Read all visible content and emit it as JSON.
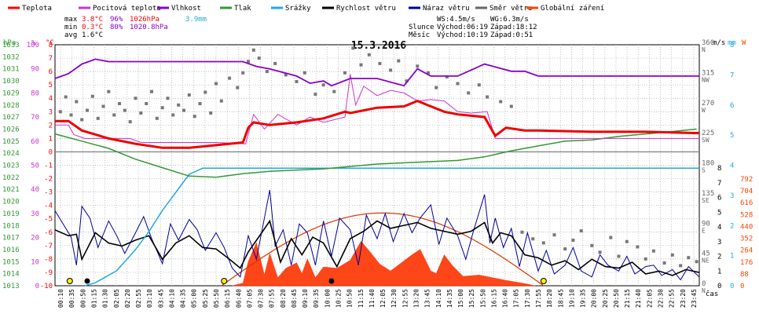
{
  "legend": [
    {
      "label": "Teplota",
      "color": "#ff0000"
    },
    {
      "label": "Pocitová teplota",
      "color": "#cc33cc"
    },
    {
      "label": "Vlhkost",
      "color": "#8800cc"
    },
    {
      "label": "Tlak",
      "color": "#339933"
    },
    {
      "label": "Srážky",
      "color": "#22aadd"
    },
    {
      "label": "Rychlost větru",
      "color": "#000000"
    },
    {
      "label": "Náraz větru",
      "color": "#000099"
    },
    {
      "label": "Směr větru",
      "color": "#666666"
    },
    {
      "label": "Globální záření",
      "color": "#ff4400"
    }
  ],
  "stats": {
    "max": {
      "label": "max",
      "temp": "3.8°C",
      "hum": "96%",
      "press": "1026hPa",
      "rain": "3.9mm"
    },
    "min": {
      "label": "min",
      "temp": "0.3°C",
      "hum": "80%",
      "press": "1020.8hPa"
    },
    "avg": {
      "label": "avg",
      "temp": "1.6°C"
    }
  },
  "info": {
    "ws": "WS:4.5m/s",
    "wg": "WG:6.3m/s",
    "sun_label": "Slunce",
    "sun_rise": "Východ:06:19",
    "sun_set": "Západ:18:12",
    "moon_label": "Měsíc",
    "moon_rise": "Východ:10:19",
    "moon_set": "Západ:0:51"
  },
  "chart_data": {
    "type": "line",
    "title": "15.3.2016",
    "xlabel": "čas",
    "axis_units": {
      "press": "hPa",
      "hum": "%",
      "temp": "°C",
      "dir": "°",
      "wind": "m/s",
      "rain": "mm",
      "rad": "W"
    },
    "x_ticks": [
      "00:10",
      "00:35",
      "00:50",
      "01:15",
      "01:30",
      "02:05",
      "02:20",
      "02:55",
      "03:10",
      "03:45",
      "04:10",
      "04:35",
      "05:00",
      "05:25",
      "05:50",
      "06:15",
      "06:40",
      "07:05",
      "07:30",
      "07:55",
      "08:20",
      "08:45",
      "09:10",
      "09:35",
      "10:00",
      "10:25",
      "10:50",
      "11:15",
      "11:40",
      "12:05",
      "12:30",
      "12:55",
      "13:20",
      "13:45",
      "14:10",
      "14:35",
      "15:00",
      "15:25",
      "15:50",
      "16:15",
      "16:40",
      "17:05",
      "17:30",
      "17:55",
      "18:20",
      "18:45",
      "19:10",
      "19:35",
      "20:00",
      "20:25",
      "20:50",
      "21:15",
      "21:40",
      "22:05",
      "22:30",
      "22:55",
      "23:20",
      "23:45"
    ],
    "pressure_axis": {
      "min": 1013,
      "max": 1033,
      "ticks": [
        "1013",
        "1014",
        "1015",
        "1016",
        "1017",
        "1018",
        "1019",
        "1020",
        "1021",
        "1022",
        "1023",
        "1024",
        "1025",
        "1026",
        "1027",
        "1028",
        "1029",
        "1030",
        "1031",
        "1032",
        "1033"
      ]
    },
    "humidity_axis": {
      "ticks": [
        "0",
        "10",
        "20",
        "30",
        "40",
        "50",
        "60",
        "70",
        "80",
        "90",
        "100"
      ]
    },
    "temp_axis": {
      "min": -10,
      "max": 8,
      "ticks": [
        "-10",
        "-9",
        "-8",
        "-7",
        "-6",
        "-5",
        "-4",
        "-3",
        "-2",
        "-1",
        "0",
        "1",
        "2",
        "3",
        "4",
        "5",
        "6",
        "7",
        "8"
      ]
    },
    "direction_axis": {
      "min": 0,
      "max": 360,
      "ticks": [
        {
          "deg": "0",
          "dir": "N"
        },
        {
          "deg": "45",
          "dir": "NE"
        },
        {
          "deg": "90",
          "dir": "E"
        },
        {
          "deg": "135",
          "dir": "SE"
        },
        {
          "deg": "180",
          "dir": "S"
        },
        {
          "deg": "225",
          "dir": "SW"
        },
        {
          "deg": "270",
          "dir": "W"
        },
        {
          "deg": "315",
          "dir": "NW"
        },
        {
          "deg": "360",
          "dir": "N"
        }
      ]
    },
    "wind_axis": {
      "min": 0,
      "max": 8,
      "ticks": [
        "0",
        "1",
        "2",
        "3",
        "4",
        "5",
        "6",
        "7",
        "8"
      ]
    },
    "rain_axis": {
      "min": 0,
      "max": 8,
      "ticks": [
        "0",
        "1",
        "2",
        "3",
        "4",
        "5",
        "6",
        "7",
        "8"
      ]
    },
    "radiation_axis": {
      "min": 0,
      "max": 792,
      "ticks": [
        "0",
        "88",
        "176",
        "264",
        "352",
        "440",
        "528",
        "616",
        "704",
        "792"
      ]
    },
    "temperature": {
      "hours": [
        0,
        0.5,
        1,
        2,
        3,
        4,
        5,
        6,
        7,
        7.2,
        7.4,
        8,
        9,
        10,
        10.8,
        11,
        11.5,
        12,
        13,
        13.5,
        14,
        14.5,
        15,
        16,
        16.4,
        16.8,
        17.5,
        18,
        20,
        22,
        24
      ],
      "values": [
        2.3,
        2.3,
        1.6,
        1.0,
        0.6,
        0.3,
        0.3,
        0.5,
        0.7,
        1.8,
        2.2,
        2.0,
        2.2,
        2.5,
        3.0,
        2.9,
        3.1,
        3.3,
        3.4,
        3.8,
        3.4,
        3.0,
        2.8,
        2.6,
        1.2,
        1.8,
        1.6,
        1.6,
        1.5,
        1.5,
        1.4
      ]
    },
    "apparent_temperature": {
      "hours": [
        0,
        0.5,
        0.7,
        1.1,
        1.5,
        2.8,
        3.2,
        6.0,
        7.1,
        7.4,
        7.8,
        8.3,
        9.0,
        9.5,
        10.0,
        10.8,
        11.0,
        11.2,
        11.5,
        12.0,
        12.5,
        13.0,
        13.5,
        14.0,
        14.5,
        15.0,
        15.5,
        16.1,
        16.4,
        16.8,
        20.0,
        22.0,
        24.0
      ],
      "values": [
        2.0,
        2.0,
        1.3,
        1.0,
        1.0,
        1.0,
        0.7,
        0.7,
        0.6,
        2.8,
        1.7,
        2.8,
        2.0,
        2.6,
        2.2,
        2.6,
        5.8,
        3.5,
        4.9,
        4.2,
        4.6,
        4.4,
        3.8,
        3.9,
        3.8,
        3.0,
        2.9,
        3.0,
        1.0,
        1.0,
        1.0,
        1.0,
        1.0
      ]
    },
    "humidity": {
      "hours": [
        0,
        0.5,
        1,
        1.5,
        2,
        3,
        4,
        5,
        6,
        7,
        7.5,
        8,
        9,
        9.5,
        10,
        10.3,
        11,
        12,
        13,
        13.5,
        14,
        15,
        16,
        17,
        17.5,
        18,
        19,
        20,
        21,
        22,
        23,
        24
      ],
      "values": [
        86,
        88,
        92,
        94,
        93,
        93,
        93,
        93,
        93,
        93,
        91,
        90,
        87,
        84,
        85,
        83,
        86,
        86,
        83,
        90,
        87,
        87,
        92,
        89,
        89,
        87,
        87,
        87,
        87,
        87,
        87,
        87
      ]
    },
    "pressure": {
      "hours": [
        0,
        1,
        2,
        3,
        4,
        5,
        6,
        7,
        8,
        9,
        10,
        11,
        12,
        13,
        14,
        15,
        16,
        17,
        18,
        19,
        20,
        21,
        22,
        23,
        23.9
      ],
      "values": [
        1025.6,
        1025.0,
        1024.4,
        1023.5,
        1022.8,
        1022.1,
        1022.0,
        1022.3,
        1022.5,
        1022.6,
        1022.7,
        1022.9,
        1023.1,
        1023.2,
        1023.3,
        1023.4,
        1023.7,
        1024.2,
        1024.6,
        1025.0,
        1025.1,
        1025.4,
        1025.6,
        1025.8,
        1026.0
      ]
    },
    "rain": {
      "hours": [
        1.1,
        1.5,
        2.3,
        3.0,
        3.5,
        4.0,
        4.5,
        5.0,
        5.5,
        6.2,
        24.0
      ],
      "values": [
        0.0,
        0.1,
        0.5,
        1.2,
        1.8,
        2.5,
        3.1,
        3.7,
        3.9,
        3.9,
        3.9
      ]
    },
    "radiation": {
      "hours": [
        6.6,
        7.0,
        7.2,
        7.5,
        7.8,
        8.0,
        8.3,
        8.6,
        9.0,
        9.2,
        9.4,
        9.7,
        10.0,
        10.5,
        11.0,
        11.4,
        11.7,
        12.1,
        12.5,
        12.9,
        13.3,
        13.6,
        14.0,
        14.2,
        14.5,
        14.8,
        15.2,
        15.8,
        16.3,
        16.8,
        17.4,
        17.9
      ],
      "values": [
        0,
        20,
        180,
        320,
        80,
        240,
        60,
        130,
        170,
        90,
        200,
        60,
        140,
        130,
        190,
        330,
        260,
        160,
        110,
        170,
        230,
        270,
        110,
        90,
        230,
        150,
        70,
        80,
        60,
        40,
        20,
        0
      ]
    },
    "wind_speed": {
      "hours": [
        0,
        0.5,
        0.8,
        1.0,
        1.5,
        2.0,
        2.5,
        3.0,
        3.5,
        4.0,
        4.5,
        5.0,
        5.5,
        6.0,
        6.5,
        6.9,
        7.2,
        7.7,
        8.0,
        8.4,
        8.8,
        9.2,
        9.6,
        10.0,
        10.5,
        11.0,
        11.5,
        12.0,
        12.5,
        13.0,
        13.5,
        14.0,
        14.5,
        15.0,
        15.5,
        16.0,
        16.3,
        16.6,
        17.0,
        17.5,
        18.0,
        18.5,
        19.0,
        19.5,
        20.0,
        20.5,
        21.0,
        21.5,
        22.0,
        22.5,
        23.0,
        23.5,
        24.0
      ],
      "values": [
        3.8,
        3.4,
        3.5,
        1.8,
        3.6,
        2.9,
        2.7,
        3.1,
        3.4,
        1.8,
        2.9,
        3.4,
        2.6,
        2.5,
        1.8,
        1.2,
        2.3,
        3.6,
        4.4,
        1.6,
        3.2,
        2.1,
        3.3,
        2.9,
        1.3,
        3.2,
        3.7,
        4.4,
        3.9,
        4.1,
        4.3,
        3.9,
        3.7,
        3.5,
        3.7,
        4.3,
        2.9,
        3.6,
        3.4,
        2.1,
        1.9,
        1.4,
        1.7,
        1.1,
        1.8,
        1.3,
        1.2,
        1.6,
        0.8,
        1.0,
        0.7,
        1.1,
        0.9
      ]
    },
    "wind_gust": {
      "hours": [
        0,
        0.3,
        0.6,
        0.8,
        1.0,
        1.3,
        1.6,
        2.0,
        2.3,
        2.6,
        3.0,
        3.3,
        3.6,
        4.0,
        4.3,
        4.6,
        5.0,
        5.3,
        5.6,
        6.0,
        6.3,
        6.6,
        6.9,
        7.2,
        7.5,
        7.8,
        8.0,
        8.2,
        8.5,
        8.8,
        9.1,
        9.4,
        9.7,
        10.0,
        10.3,
        10.6,
        11.0,
        11.3,
        11.6,
        12.0,
        12.3,
        12.6,
        13.0,
        13.3,
        13.6,
        14.0,
        14.3,
        14.6,
        15.0,
        15.3,
        15.6,
        16.0,
        16.2,
        16.4,
        16.7,
        17.0,
        17.3,
        17.6,
        18.0,
        18.3,
        18.6,
        19.0,
        19.3,
        19.6,
        20.0,
        20.3,
        20.6,
        21.0,
        21.3,
        21.6,
        22.0,
        22.3,
        22.6,
        23.0,
        23.3,
        23.6,
        24.0
      ],
      "values": [
        5.1,
        4.2,
        3.3,
        1.4,
        5.4,
        4.6,
        2.6,
        4.4,
        3.4,
        2.2,
        3.6,
        4.7,
        3.2,
        1.5,
        4.2,
        3.1,
        4.5,
        3.8,
        2.4,
        3.6,
        2.6,
        1.2,
        0.6,
        3.4,
        1.8,
        4.6,
        6.5,
        2.7,
        3.8,
        1.4,
        4.2,
        3.6,
        1.4,
        4.4,
        2.0,
        4.6,
        3.8,
        1.4,
        4.8,
        3.2,
        4.9,
        3.0,
        4.9,
        3.6,
        4.6,
        5.5,
        2.8,
        4.6,
        3.4,
        1.8,
        3.8,
        6.2,
        2.9,
        4.6,
        2.6,
        3.9,
        1.3,
        3.6,
        1.0,
        2.4,
        0.8,
        1.4,
        2.6,
        1.0,
        0.6,
        2.1,
        1.4,
        1.0,
        2.0,
        0.8,
        1.3,
        1.4,
        0.7,
        1.1,
        0.4,
        1.3,
        0.6
      ]
    },
    "wind_direction_points": [
      [
        0.2,
        260
      ],
      [
        0.4,
        282
      ],
      [
        0.6,
        255
      ],
      [
        0.8,
        275
      ],
      [
        1.0,
        248
      ],
      [
        1.2,
        262
      ],
      [
        1.4,
        283
      ],
      [
        1.6,
        250
      ],
      [
        1.8,
        268
      ],
      [
        2.0,
        290
      ],
      [
        2.2,
        255
      ],
      [
        2.4,
        272
      ],
      [
        2.6,
        262
      ],
      [
        2.8,
        245
      ],
      [
        3.0,
        280
      ],
      [
        3.2,
        258
      ],
      [
        3.4,
        272
      ],
      [
        3.6,
        290
      ],
      [
        3.8,
        250
      ],
      [
        4.0,
        266
      ],
      [
        4.2,
        280
      ],
      [
        4.4,
        255
      ],
      [
        4.6,
        270
      ],
      [
        4.8,
        262
      ],
      [
        5.0,
        285
      ],
      [
        5.2,
        253
      ],
      [
        5.4,
        272
      ],
      [
        5.6,
        289
      ],
      [
        5.8,
        258
      ],
      [
        6.0,
        302
      ],
      [
        6.2,
        276
      ],
      [
        6.5,
        310
      ],
      [
        6.8,
        296
      ],
      [
        7.0,
        318
      ],
      [
        7.2,
        335
      ],
      [
        7.4,
        352
      ],
      [
        7.6,
        340
      ],
      [
        7.9,
        320
      ],
      [
        8.2,
        332
      ],
      [
        8.6,
        315
      ],
      [
        9.0,
        305
      ],
      [
        9.3,
        318
      ],
      [
        9.7,
        286
      ],
      [
        10.0,
        300
      ],
      [
        10.4,
        290
      ],
      [
        10.8,
        318
      ],
      [
        11.1,
        355
      ],
      [
        11.4,
        330
      ],
      [
        11.7,
        345
      ],
      [
        12.1,
        332
      ],
      [
        12.5,
        322
      ],
      [
        12.8,
        336
      ],
      [
        13.1,
        306
      ],
      [
        13.5,
        328
      ],
      [
        13.9,
        318
      ],
      [
        14.2,
        296
      ],
      [
        14.6,
        312
      ],
      [
        15.0,
        302
      ],
      [
        15.4,
        288
      ],
      [
        15.8,
        300
      ],
      [
        16.1,
        282
      ],
      [
        16.6,
        275
      ],
      [
        17.0,
        268
      ],
      [
        17.4,
        80
      ],
      [
        17.8,
        70
      ],
      [
        18.2,
        64
      ],
      [
        18.6,
        76
      ],
      [
        19.0,
        55
      ],
      [
        19.3,
        68
      ],
      [
        19.6,
        82
      ],
      [
        20.0,
        60
      ],
      [
        20.3,
        50
      ],
      [
        20.7,
        72
      ],
      [
        21.0,
        44
      ],
      [
        21.3,
        66
      ],
      [
        21.7,
        58
      ],
      [
        22.0,
        40
      ],
      [
        22.3,
        52
      ],
      [
        22.7,
        34
      ],
      [
        23.0,
        46
      ],
      [
        23.3,
        30
      ],
      [
        23.6,
        42
      ],
      [
        23.9,
        36
      ]
    ],
    "markers": [
      {
        "hour": 0.55,
        "type": "sun"
      },
      {
        "hour": 1.2,
        "type": "moon"
      },
      {
        "hour": 6.3,
        "type": "sun"
      },
      {
        "hour": 10.3,
        "type": "moon"
      },
      {
        "hour": 18.2,
        "type": "sun"
      }
    ]
  }
}
